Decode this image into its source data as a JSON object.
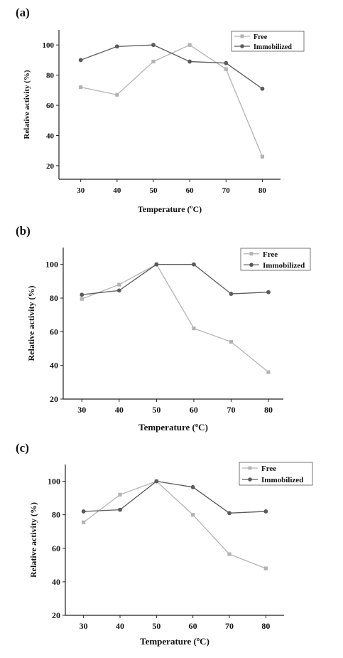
{
  "panels": [
    {
      "label": "(a)",
      "chart_data": {
        "type": "line",
        "x": [
          30,
          40,
          50,
          60,
          70,
          80
        ],
        "series": [
          {
            "name": "Free",
            "values": [
              72,
              67,
              89,
              100,
              84,
              26
            ]
          },
          {
            "name": "Immobilized",
            "values": [
              90,
              99,
              100,
              89,
              88,
              71
            ]
          }
        ],
        "xlabel": "Temperature (ºC)",
        "ylabel": "Relative activity (%)",
        "xticks": [
          "30",
          "40",
          "50",
          "60",
          "70",
          "80"
        ],
        "yticks": [
          "20",
          "40",
          "60",
          "80",
          "100"
        ],
        "xlim": [
          24,
          85
        ],
        "ylim": [
          11,
          110
        ],
        "legend": "top-right",
        "grid": false
      }
    },
    {
      "label": "(b)",
      "chart_data": {
        "type": "line",
        "x": [
          30,
          40,
          50,
          60,
          70,
          80
        ],
        "series": [
          {
            "name": "Free",
            "values": [
              79.5,
              88,
              100,
              62,
              54,
              36
            ]
          },
          {
            "name": "Immobilized",
            "values": [
              82,
              84.5,
              100,
              100,
              82.5,
              83.5
            ]
          }
        ],
        "xlabel": "Temperature (ºC)",
        "ylabel": "Relative activity (%)",
        "xticks": [
          "30",
          "40",
          "50",
          "60",
          "70",
          "80"
        ],
        "yticks": [
          "20",
          "40",
          "60",
          "80",
          "100"
        ],
        "xlim": [
          25,
          84
        ],
        "ylim": [
          20,
          110
        ],
        "legend": "top-right",
        "grid": false
      }
    },
    {
      "label": "(c)",
      "chart_data": {
        "type": "line",
        "x": [
          30,
          40,
          50,
          60,
          70,
          80
        ],
        "series": [
          {
            "name": "Free",
            "values": [
              75.5,
              92,
              100,
              80,
              56.5,
              48
            ]
          },
          {
            "name": "Immobilized",
            "values": [
              82,
              83,
              100,
              96.5,
              81,
              82
            ]
          }
        ],
        "xlabel": "Temperature (ºC)",
        "ylabel": "Relative activity (%)",
        "xticks": [
          "30",
          "40",
          "50",
          "60",
          "70",
          "80"
        ],
        "yticks": [
          "20",
          "40",
          "60",
          "80",
          "100"
        ],
        "xlim": [
          25,
          85
        ],
        "ylim": [
          20,
          110
        ],
        "legend": "top-right",
        "grid": false
      }
    }
  ],
  "colors": {
    "free": "#b3b3b3",
    "immobilized": "#5a5a5a",
    "axis": "#222222"
  }
}
